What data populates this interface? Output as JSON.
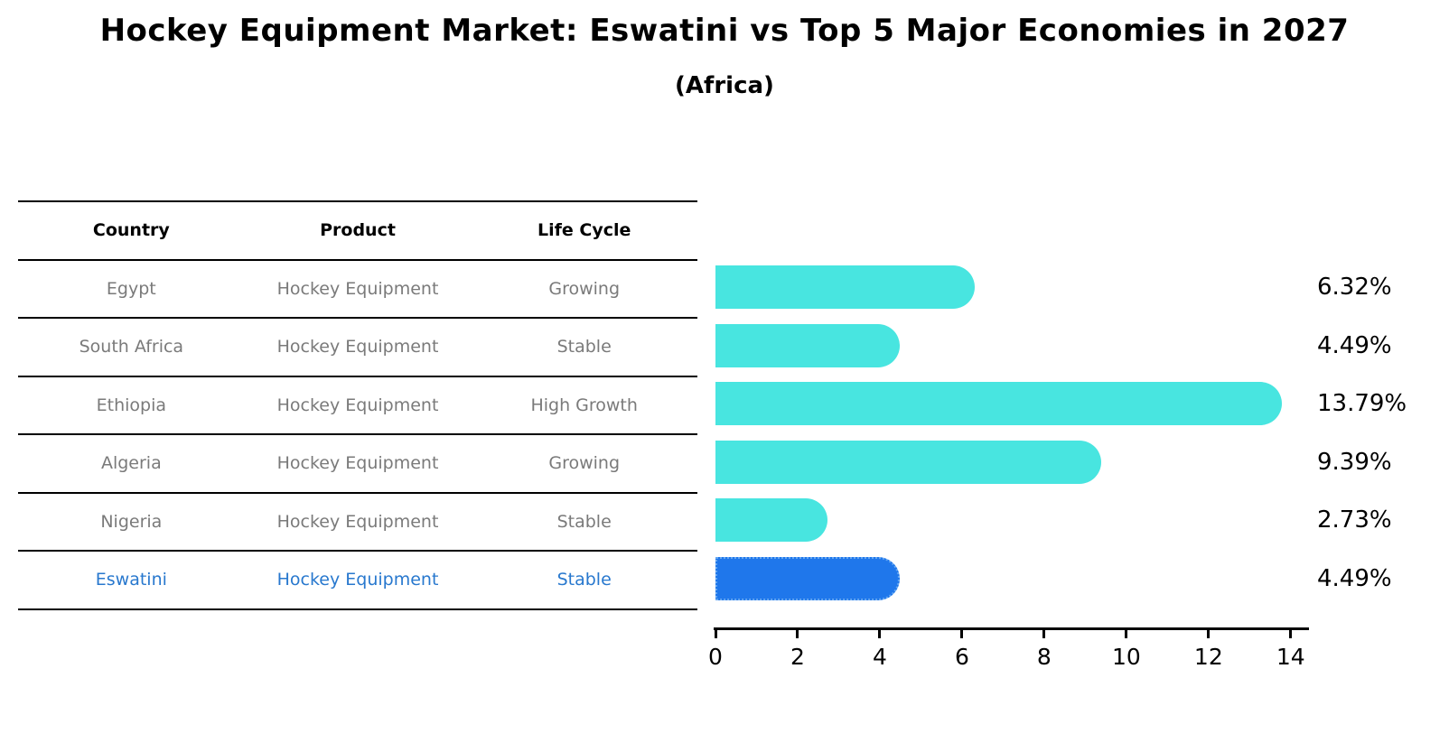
{
  "page": {
    "title": "Hockey Equipment Market: Eswatini vs Top 5 Major Economies in 2027",
    "subtitle": "(Africa)"
  },
  "table": {
    "headers": [
      "Country",
      "Product",
      "Life Cycle"
    ],
    "rows": [
      {
        "country": "Egypt",
        "product": "Hockey Equipment",
        "life_cycle": "Growing",
        "highlight": false
      },
      {
        "country": "South Africa",
        "product": "Hockey Equipment",
        "life_cycle": "Stable",
        "highlight": false
      },
      {
        "country": "Ethiopia",
        "product": "Hockey Equipment",
        "life_cycle": "High Growth",
        "highlight": false
      },
      {
        "country": "Algeria",
        "product": "Hockey Equipment",
        "life_cycle": "Growing",
        "highlight": false
      },
      {
        "country": "Nigeria",
        "product": "Hockey Equipment",
        "life_cycle": "Stable",
        "highlight": false
      },
      {
        "country": "Eswatini",
        "product": "Hockey Equipment",
        "life_cycle": "Stable",
        "highlight": true
      }
    ]
  },
  "chart_data": {
    "type": "bar",
    "orientation": "horizontal",
    "title": "Hockey Equipment Market: Eswatini vs Top 5 Major Economies in 2027",
    "subtitle": "(Africa)",
    "categories": [
      "Egypt",
      "South Africa",
      "Ethiopia",
      "Algeria",
      "Nigeria",
      "Eswatini"
    ],
    "values": [
      6.32,
      4.49,
      13.79,
      9.39,
      2.73,
      4.49
    ],
    "value_labels": [
      "6.32%",
      "4.49%",
      "13.79%",
      "9.39%",
      "2.73%",
      "4.49%"
    ],
    "xticks": [
      0,
      2,
      4,
      6,
      8,
      10,
      12,
      14
    ],
    "xlim": [
      0,
      14.4
    ],
    "grid": false,
    "legend": "none",
    "highlight_index": 5,
    "bar_color": "#48e5e0",
    "highlight_color": "#1f77eb",
    "highlight_border_color": "#66a8f2",
    "table_text_color": "#7a7a7a",
    "highlight_text_color": "#2878ce"
  }
}
